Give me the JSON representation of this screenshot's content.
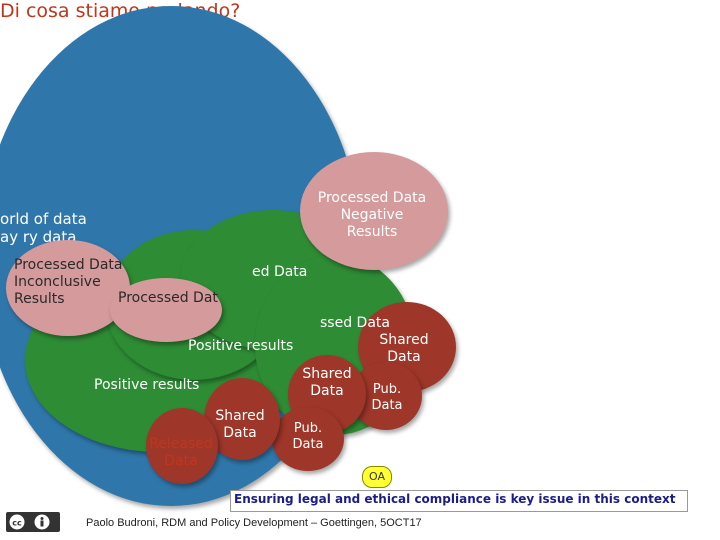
{
  "title": "Di cosa stiamo parlando?",
  "world_text_1": "orld of data",
  "world_text_2": "ay        ry data",
  "bubbles": {
    "negative": "Processed Data Negative Results",
    "inconclusive": "Processed Data Inconclusive Results",
    "processed_a": "Processed Data",
    "processed_b": "ed Data",
    "processed_c": "ssed Data",
    "positive_1": "Positive results",
    "positive_2": "Positive results",
    "shared_1": "Shared Data",
    "shared_2": "Shared Data",
    "shared_3": "Shared Data",
    "released": "Released Data",
    "pub_1": "Pub. Data",
    "pub_2": "Pub. Data"
  },
  "oa_label": "OA",
  "footer_note": "Ensuring legal and ethical compliance is key issue in this context",
  "credit": "Paolo Budroni, RDM and Policy Development – Goettingen, 5OCT17",
  "colors": {
    "blue": "#2f77aa",
    "green": "#2e8c35",
    "pink": "#d59a9b",
    "dark_red": "#9e3629",
    "title_red": "#c0361c"
  },
  "icons": {
    "license": "creative-commons-by-icon"
  }
}
